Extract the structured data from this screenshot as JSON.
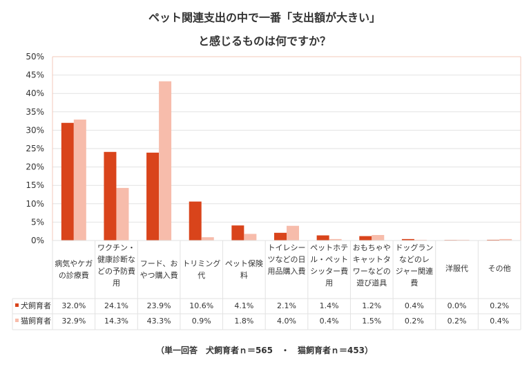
{
  "title_line1": "ペット関連支出の中で一番「支出額が大きい」",
  "title_line2": "と感じるものは何ですか？",
  "footnote": "（単一回答　犬飼育者ｎ＝565　・　猫飼育者ｎ＝453）",
  "colors": {
    "dog": "#d9441b",
    "cat": "#f7bcab",
    "grid": "#e2e2e2",
    "plot_border": "#f3c9bb"
  },
  "chart_data": {
    "type": "bar",
    "title": "ペット関連支出の中で一番「支出額が大きい」と感じるものは何ですか？",
    "ylim": [
      0,
      50
    ],
    "y_ticks": [
      "0%",
      "5%",
      "10%",
      "15%",
      "20%",
      "25%",
      "30%",
      "35%",
      "40%",
      "45%",
      "50%"
    ],
    "grid": true,
    "legend_placement": "data-table-left",
    "categories": [
      [
        "病気やケガ",
        "の診療費"
      ],
      [
        "ワクチン・",
        "健康診断な",
        "どの予防費",
        "用"
      ],
      [
        "フード、お",
        "やつ購入費"
      ],
      [
        "トリミング",
        "代"
      ],
      [
        "ペット保険",
        "料"
      ],
      [
        "トイレシー",
        "ツなどの日",
        "用品購入費"
      ],
      [
        "ペットホテ",
        "ル・ペット",
        "シッター費",
        "用"
      ],
      [
        "おもちゃや",
        "キャットタ",
        "ワーなどの",
        "遊び道具"
      ],
      [
        "ドッグラン",
        "などのレ",
        "ジャー関連",
        "費"
      ],
      [
        "洋服代"
      ],
      [
        "その他"
      ]
    ],
    "series": [
      {
        "name": "犬飼育者",
        "values": [
          32.0,
          24.1,
          23.9,
          10.6,
          4.1,
          2.1,
          1.4,
          1.2,
          0.4,
          0.0,
          0.2
        ],
        "labels": [
          "32.0%",
          "24.1%",
          "23.9%",
          "10.6%",
          "4.1%",
          "2.1%",
          "1.4%",
          "1.2%",
          "0.4%",
          "0.0%",
          "0.2%"
        ]
      },
      {
        "name": "猫飼育者",
        "values": [
          32.9,
          14.3,
          43.3,
          0.9,
          1.8,
          4.0,
          0.4,
          1.5,
          0.2,
          0.2,
          0.4
        ],
        "labels": [
          "32.9%",
          "14.3%",
          "43.3%",
          "0.9%",
          "1.8%",
          "4.0%",
          "0.4%",
          "1.5%",
          "0.2%",
          "0.2%",
          "0.4%"
        ]
      }
    ]
  }
}
